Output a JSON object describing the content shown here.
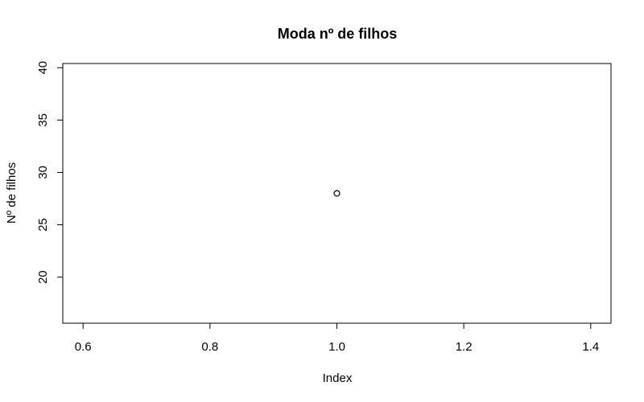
{
  "chart_data": {
    "type": "scatter",
    "title": "Moda nº de filhos",
    "xlabel": "Index",
    "ylabel": "Nº de filhos",
    "xlim": [
      0.568,
      1.432
    ],
    "ylim": [
      15.6,
      40.4
    ],
    "xticks": [
      0.6,
      0.8,
      1.0,
      1.2,
      1.4
    ],
    "xtick_labels": [
      "0.6",
      "0.8",
      "1.0",
      "1.2",
      "1.4"
    ],
    "yticks": [
      20,
      25,
      30,
      35,
      40
    ],
    "ytick_labels": [
      "20",
      "25",
      "30",
      "35",
      "40"
    ],
    "grid": false,
    "legend": "none",
    "series": [
      {
        "x": [
          1.0
        ],
        "y": [
          28
        ],
        "marker": "open-circle",
        "color": "#000000"
      }
    ]
  }
}
